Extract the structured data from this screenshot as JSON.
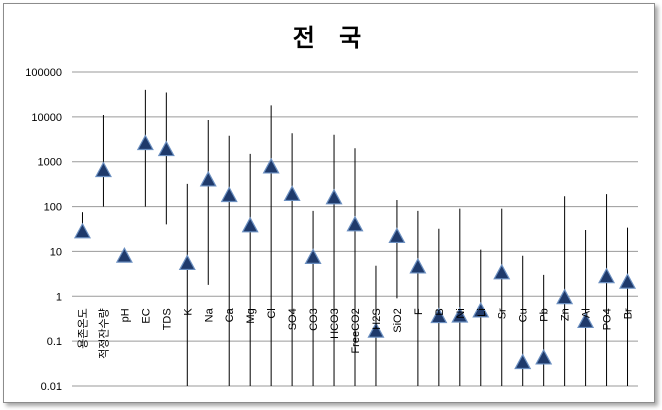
{
  "chart_data": {
    "type": "scatter",
    "title": "전 국",
    "xlabel": "",
    "ylabel": "",
    "y_scale": "log",
    "ylim": [
      0.01,
      100000
    ],
    "grid": true,
    "legend": "none",
    "y_ticks": [
      "0.01",
      "0.1",
      "1",
      "10",
      "100",
      "1000",
      "10000",
      "100000"
    ],
    "categories": [
      "용존온도",
      "적정잔수량",
      "pH",
      "EC",
      "TDS",
      "K",
      "Na",
      "Ca",
      "Mg",
      "Cl",
      "SO4",
      "CO3",
      "HCO3",
      "FreeCO2",
      "H2S",
      "SiO2",
      "F",
      "B",
      "Ni",
      "Li",
      "Sr",
      "Cu",
      "Pb",
      "Zn",
      "Al",
      "PO4",
      "Br"
    ],
    "marker_values": [
      28,
      650,
      8,
      2600,
      1900,
      5.5,
      400,
      180,
      38,
      780,
      190,
      7.5,
      160,
      40,
      0.17,
      22,
      4.6,
      0.36,
      0.37,
      0.48,
      3.4,
      0.034,
      0.043,
      0.95,
      0.28,
      2.8,
      2.1
    ],
    "range_max": [
      75,
      11000,
      null,
      40000,
      35000,
      320,
      8500,
      3800,
      1500,
      18000,
      4300,
      80,
      4000,
      2000,
      4.8,
      140,
      80,
      32,
      90,
      11,
      90,
      8,
      3,
      170,
      30,
      190,
      34
    ],
    "range_min": [
      null,
      100,
      null,
      100,
      40,
      0.01,
      1.8,
      0.01,
      0.01,
      0.01,
      0.01,
      0.01,
      0.01,
      0.01,
      0.01,
      0.9,
      0.01,
      0.01,
      0.01,
      0.01,
      0.01,
      0.01,
      0.01,
      0.01,
      0.01,
      0.01,
      0.01
    ],
    "colors": {
      "marker_fill": "#1f3a6b",
      "marker_edge": "#6b8fc0",
      "line": "#000000",
      "grid": "#9a9a9a"
    }
  }
}
